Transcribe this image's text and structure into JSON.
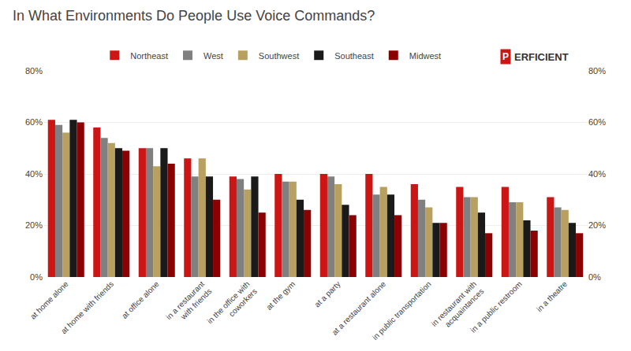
{
  "chart_data": {
    "type": "bar",
    "title": "In What Environments Do People Use Voice Commands?",
    "categories": [
      "at home alone",
      "at home with friends",
      "at office alone",
      "in a restaurant\nwith friends",
      "in the office with\ncoworkers",
      "at the gym",
      "at a party",
      "at a restaurant alone",
      "in public transportation",
      "in restaurant with\nacquaintances",
      "in a public restroom",
      "in a theatre"
    ],
    "series": [
      {
        "name": "Northeast",
        "color": "#cc1515",
        "values": [
          0.61,
          0.58,
          0.5,
          0.46,
          0.39,
          0.4,
          0.4,
          0.4,
          0.36,
          0.35,
          0.35,
          0.31
        ]
      },
      {
        "name": "West",
        "color": "#808080",
        "values": [
          0.59,
          0.54,
          0.5,
          0.39,
          0.38,
          0.37,
          0.39,
          0.32,
          0.3,
          0.31,
          0.29,
          0.27
        ]
      },
      {
        "name": "Southwest",
        "color": "#b8a060",
        "values": [
          0.56,
          0.52,
          0.43,
          0.46,
          0.34,
          0.37,
          0.36,
          0.35,
          0.27,
          0.31,
          0.29,
          0.26
        ]
      },
      {
        "name": "Southeast",
        "color": "#1a1a1a",
        "values": [
          0.61,
          0.5,
          0.5,
          0.39,
          0.39,
          0.3,
          0.28,
          0.32,
          0.21,
          0.25,
          0.22,
          0.21
        ]
      },
      {
        "name": "Midwest",
        "color": "#8b0000",
        "values": [
          0.6,
          0.49,
          0.44,
          0.3,
          0.25,
          0.26,
          0.24,
          0.24,
          0.21,
          0.17,
          0.18,
          0.17
        ]
      }
    ],
    "ylim": [
      0,
      0.8
    ],
    "yticks": [
      {
        "value": 0.0,
        "label": "0%"
      },
      {
        "value": 0.2,
        "label": "20%"
      },
      {
        "value": 0.4,
        "label": "40%"
      },
      {
        "value": 0.6,
        "label": "60%"
      },
      {
        "value": 0.8,
        "label": "80%"
      }
    ],
    "y2lim": [
      0,
      0.8
    ],
    "y2ticks": [
      {
        "value": 0.0,
        "label": "0%"
      },
      {
        "value": 0.2,
        "label": "20%"
      },
      {
        "value": 0.4,
        "label": "40%"
      },
      {
        "value": 0.6,
        "label": "60%"
      },
      {
        "value": 0.8,
        "label": "80%"
      }
    ],
    "grid": true,
    "legend": "upper center",
    "annotations": [
      {
        "text": "P",
        "color": "#cc1515"
      },
      {
        "text": "ERFICIENT",
        "color": "#333333"
      }
    ]
  }
}
